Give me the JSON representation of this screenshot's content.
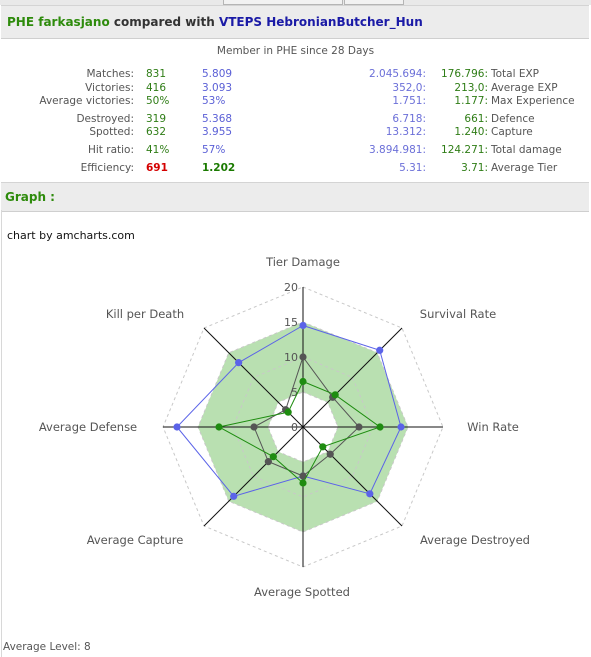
{
  "header": {
    "clan_a": "PHE",
    "player_a": "farkasjano",
    "compared_text": "compared with",
    "clan_b": "VTEPS",
    "player_b": "HebronianButcher_Hun"
  },
  "member_text": "Member in PHE  since 28 Days",
  "stats_left": [
    {
      "label": "Matches:",
      "v1": "831",
      "v2": "5.809"
    },
    {
      "label": "Victories:",
      "v1": "416",
      "v2": "3.093"
    },
    {
      "label": "Average victories:",
      "v1": "50%",
      "v2": "53%"
    },
    {
      "label": "Destroyed:",
      "v1": "319",
      "v2": "5.368"
    },
    {
      "label": "Spotted:",
      "v1": "632",
      "v2": "3.955"
    },
    {
      "label": "Hit ratio:",
      "v1": "41%",
      "v2": "57%"
    },
    {
      "label": "Efficiency:",
      "v1": "691",
      "v2": "1.202"
    }
  ],
  "stats_right": [
    {
      "v1": "2.045.694:",
      "v2": "176.796:",
      "label": "Total EXP"
    },
    {
      "v1": "352,0:",
      "v2": "213,0:",
      "label": "Average EXP"
    },
    {
      "v1": "1.751:",
      "v2": "1.177:",
      "label": "Max Experience"
    },
    {
      "v1": "6.718:",
      "v2": "661:",
      "label": "Defence"
    },
    {
      "v1": "13.312:",
      "v2": "1.240:",
      "label": "Capture"
    },
    {
      "v1": "3.894.981:",
      "v2": "124.271:",
      "label": "Total damage"
    },
    {
      "v1": "5.31:",
      "v2": "3.71:",
      "label": "Average Tier"
    }
  ],
  "graph_title": "Graph :",
  "chart_credit": "chart by amcharts.com",
  "average_level": "Average Level: 8",
  "colors": {
    "band": "#b9e0b1",
    "series_blue": "#5b63e8",
    "series_green": "#1e8c10",
    "series_gray": "#555555"
  },
  "chart_data": {
    "type": "radar",
    "axes": [
      "Tier Damage",
      "Survival Rate",
      "Win Rate",
      "Average Destroyed",
      "Average Spotted",
      "Average Capture",
      "Average Defense",
      "Kill per Death"
    ],
    "ticks": [
      "0",
      "5",
      "10",
      "15",
      "20"
    ],
    "range": [
      0,
      20
    ],
    "band": [
      5,
      15
    ],
    "series": [
      {
        "key": "blue",
        "values": [
          14.5,
          15.5,
          14,
          13.5,
          7,
          14,
          18,
          13
        ]
      },
      {
        "key": "green",
        "values": [
          6.5,
          6.5,
          11,
          4,
          8,
          6,
          12,
          3
        ]
      },
      {
        "key": "gray",
        "values": [
          10,
          6,
          8,
          5.5,
          7,
          7,
          7,
          3.5
        ]
      }
    ]
  }
}
